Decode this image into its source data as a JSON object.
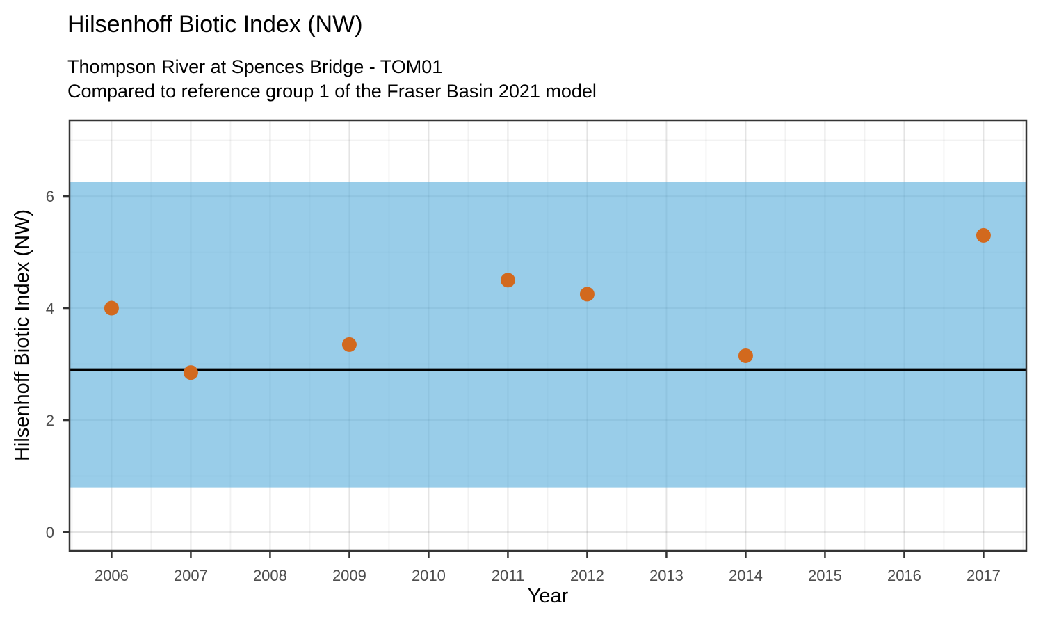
{
  "chart_data": {
    "type": "scatter",
    "title": "Hilsenhoff Biotic Index (NW)",
    "subtitle": [
      "Thompson River at Spences Bridge - TOM01",
      "Compared to reference group 1 of the Fraser Basin 2021 model"
    ],
    "xlabel": "Year",
    "ylabel": "Hilsenhoff Biotic Index (NW)",
    "series": [
      {
        "name": "Hilsenhoff Biotic Index (NW)",
        "x": [
          2006,
          2007,
          2009,
          2011,
          2012,
          2014,
          2017
        ],
        "y": [
          4.0,
          2.85,
          3.35,
          4.5,
          4.25,
          3.15,
          5.3
        ]
      }
    ],
    "reference_band": {
      "ymin": 0.8,
      "ymax": 6.25,
      "color": "#62B2DD",
      "opacity": 0.65
    },
    "reference_line": {
      "y": 2.9,
      "color": "#000000",
      "width": 4
    },
    "point_style": {
      "color": "#D2691E",
      "radius": 10.5
    },
    "axes": {
      "xlim": [
        2005.47,
        2017.54
      ],
      "ylim": [
        -0.335,
        7.355
      ],
      "x_ticks": [
        2006,
        2007,
        2008,
        2009,
        2010,
        2011,
        2012,
        2013,
        2014,
        2015,
        2016,
        2017
      ],
      "y_ticks": [
        0,
        2,
        4,
        6
      ],
      "x_minor": [
        2005.5,
        2006.5,
        2007.5,
        2008.5,
        2009.5,
        2010.5,
        2011.5,
        2012.5,
        2013.5,
        2014.5,
        2015.5,
        2016.5,
        2017.5
      ],
      "y_minor": [
        1,
        3,
        5,
        7
      ],
      "grid": "major and minor, light gray on white panel",
      "legend": "none"
    },
    "style_colors": {
      "panel_background": "#ffffff",
      "grid_major": "rgba(0,0,0,0.105)",
      "grid_minor": "rgba(0,0,0,0.05)",
      "panel_border": "#343434",
      "tick_mark": "#333333",
      "tick_label": "#4D4D4D",
      "text": "#000000"
    }
  }
}
